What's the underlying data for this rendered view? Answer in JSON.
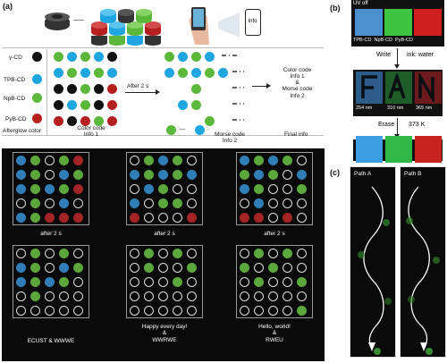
{
  "panel_a": {
    "label": "(a)",
    "info_icon_label": "Info",
    "legend": [
      {
        "label": "γ-CD",
        "color": "#111111"
      },
      {
        "label": "TPB-CD",
        "color": "#1fa6e0"
      },
      {
        "label": "NpB-CD",
        "color": "#5cb83b"
      },
      {
        "label": "PyB-CD",
        "color": "#b51f1f"
      }
    ],
    "afterglow_label": "Afterglow color",
    "after_2s_arrow": "After 2 s",
    "color_code_info1": "Color code\nInfo 1",
    "morse_code_info2": "Morse code\nInfo 2",
    "right_info": "Color code\nInfo 1\n&\nMorse code\nInfo 2",
    "final_info": "Final info",
    "grid_captions_top": [
      "after 2 s",
      "after 2 s",
      "after 2 s"
    ],
    "grid_captions_bottom": [
      "ECUST & WWWE",
      "Happy every day!\n&\nWWRWE",
      "Hello, world!\n&\nRWEU"
    ]
  },
  "panel_b": {
    "label": "(b)",
    "uv_off": "UV off",
    "strip_labels": "TPB-CD  NpB-CD  PyB-CD",
    "write_label": "Write",
    "ink_label": "ink: water",
    "wavelengths": [
      "254 nm",
      "310 nm",
      "365 nm"
    ],
    "erase_label": "Erase",
    "temp_label": "373 K"
  },
  "panel_c": {
    "label": "(c)",
    "path_a": "Path A",
    "path_b": "Path B"
  },
  "colors": {
    "black": "#111111",
    "blue": "#1fa6e0",
    "green": "#5cb83b",
    "red": "#b51f1f"
  }
}
